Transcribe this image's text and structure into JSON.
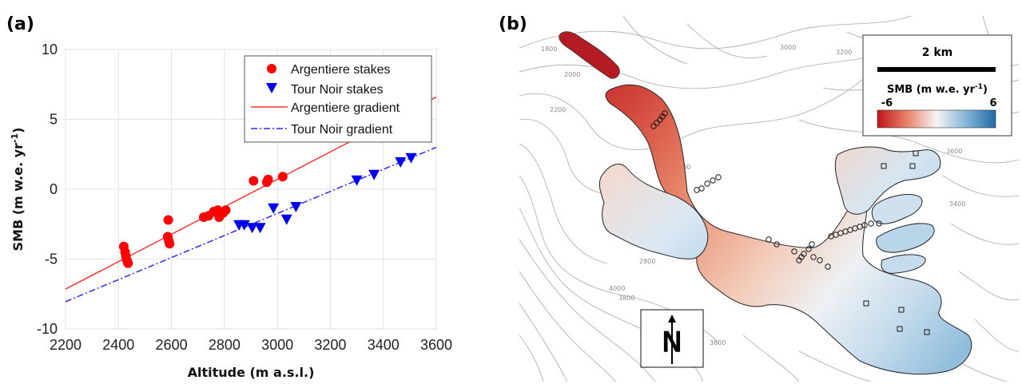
{
  "panels": {
    "a_label": "(a)",
    "b_label": "(b)"
  },
  "chart_data": {
    "type": "scatter",
    "xlabel": "Altitude (m a.s.l.)",
    "ylabel": "SMB (m w.e. yr",
    "ylabel_sup": "-1",
    "ylabel_close": ")",
    "xlim": [
      2200,
      3600
    ],
    "ylim": [
      -10,
      10
    ],
    "xticks": [
      2200,
      2400,
      2600,
      2800,
      3000,
      3200,
      3400,
      3600
    ],
    "yticks": [
      -10,
      -5,
      0,
      5,
      10
    ],
    "grid": true,
    "legend_position": "top-right",
    "series": [
      {
        "name": "Argentiere stakes",
        "marker": "circle",
        "color": "#ff0000",
        "points": [
          [
            2420,
            -4.1
          ],
          [
            2425,
            -4.5
          ],
          [
            2428,
            -4.8
          ],
          [
            2432,
            -5.1
          ],
          [
            2436,
            -5.3
          ],
          [
            2588,
            -2.2
          ],
          [
            2586,
            -3.4
          ],
          [
            2590,
            -3.7
          ],
          [
            2593,
            -3.9
          ],
          [
            2722,
            -2.0
          ],
          [
            2740,
            -1.9
          ],
          [
            2760,
            -1.6
          ],
          [
            2775,
            -1.5
          ],
          [
            2780,
            -2.0
          ],
          [
            2795,
            -1.7
          ],
          [
            2805,
            -1.5
          ],
          [
            2910,
            0.6
          ],
          [
            2960,
            0.5
          ],
          [
            2965,
            0.7
          ],
          [
            3020,
            0.9
          ]
        ]
      },
      {
        "name": "Tour Noir stakes",
        "marker": "triangle-down",
        "color": "#0000ee",
        "points": [
          [
            2855,
            -2.5
          ],
          [
            2875,
            -2.5
          ],
          [
            2905,
            -2.7
          ],
          [
            2935,
            -2.7
          ],
          [
            2985,
            -1.3
          ],
          [
            3035,
            -2.1
          ],
          [
            3070,
            -1.2
          ],
          [
            3300,
            0.7
          ],
          [
            3365,
            1.1
          ],
          [
            3465,
            2.0
          ],
          [
            3505,
            2.3
          ]
        ]
      },
      {
        "name": "Argentiere gradient",
        "style": "solid",
        "color": "#ff3030",
        "line": [
          [
            2200,
            -7.15
          ],
          [
            3600,
            6.6
          ]
        ]
      },
      {
        "name": "Tour Noir gradient",
        "style": "dash-dot",
        "color": "#2a2aff",
        "line": [
          [
            2200,
            -8.05
          ],
          [
            3600,
            3.0
          ]
        ]
      }
    ]
  },
  "map": {
    "scale_label": "2 km",
    "colorbar_title": "SMB (m w.e. yr",
    "colorbar_sup": "-1",
    "colorbar_close": ")",
    "colorbar_min": "-6",
    "colorbar_max": "6",
    "colorbar_colors": [
      "#c0151c",
      "#e8826a",
      "#f7f4f2",
      "#86b5d8",
      "#1e6aa8"
    ],
    "north_label": "N",
    "contour_labels": [
      "1800",
      "2000",
      "2200",
      "2600",
      "2800",
      "3000",
      "3200",
      "3400",
      "3600",
      "3600",
      "3800",
      "4000",
      "3800",
      "3400"
    ]
  }
}
